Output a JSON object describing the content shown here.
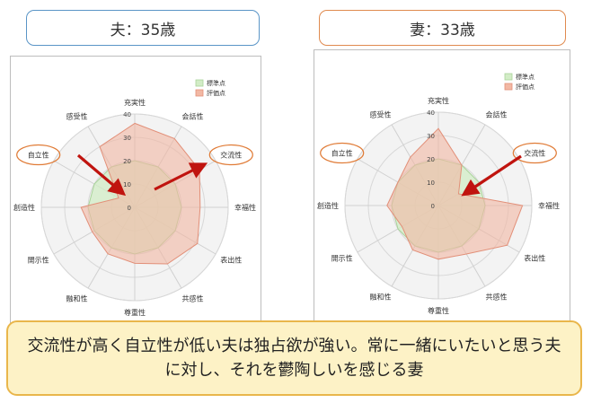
{
  "header": {
    "husband_title": "夫：35歳",
    "wife_title": "妻：33歳"
  },
  "callout": {
    "text": "交流性が高く自立性が低い夫は独占欲が強い。常に一緒にいたいと思う夫に対し、それを鬱陶しいを感じる妻"
  },
  "chart_data": [
    {
      "type": "radar",
      "title": "",
      "axes": [
        "充実性",
        "会話性",
        "交流性",
        "幸福性",
        "表出性",
        "共感性",
        "尊重性",
        "融和性",
        "開示性",
        "創造性",
        "自立性",
        "感受性"
      ],
      "highlighted_axes": [
        "自立性",
        "交流性"
      ],
      "rlim": [
        0,
        40
      ],
      "ticks": [
        0,
        10,
        20,
        30,
        40
      ],
      "legend": [
        "標準点",
        "評価点"
      ],
      "legend_position": "top-right",
      "series": [
        {
          "name": "標準点",
          "color": "#d2ecc6",
          "values": [
            20,
            20,
            20,
            20,
            20,
            20,
            20,
            20,
            20,
            20,
            20,
            20
          ]
        },
        {
          "name": "評価点",
          "color": "#f2b8a4",
          "values": [
            36,
            34,
            32,
            28,
            31,
            28,
            24,
            23,
            21,
            23,
            8,
            30
          ]
        }
      ]
    },
    {
      "type": "radar",
      "title": "",
      "axes": [
        "充実性",
        "会話性",
        "交流性",
        "幸福性",
        "表出性",
        "共感性",
        "尊重性",
        "融和性",
        "開示性",
        "創造性",
        "自立性",
        "感受性"
      ],
      "highlighted_axes": [
        "自立性",
        "交流性"
      ],
      "rlim": [
        0,
        40
      ],
      "ticks": [
        0,
        10,
        20,
        30,
        40
      ],
      "legend": [
        "標準点",
        "評価点"
      ],
      "legend_position": "top-right",
      "series": [
        {
          "name": "標準点",
          "color": "#d2ecc6",
          "values": [
            20,
            20,
            20,
            20,
            20,
            20,
            20,
            20,
            20,
            20,
            20,
            20
          ]
        },
        {
          "name": "評価点",
          "color": "#f2b8a4",
          "values": [
            33,
            20,
            10,
            36,
            34,
            24,
            23,
            22,
            18,
            22,
            20,
            24
          ]
        }
      ]
    }
  ]
}
